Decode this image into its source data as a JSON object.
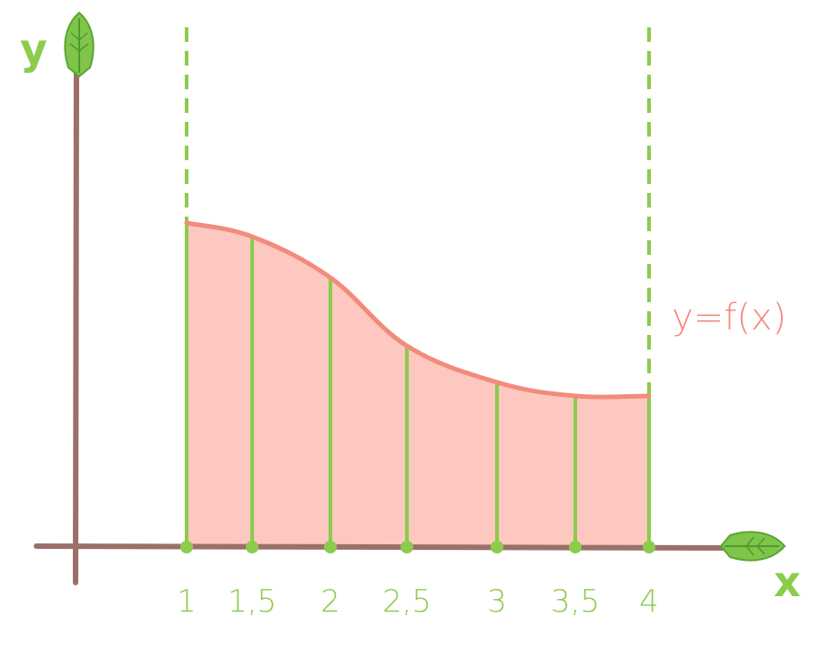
{
  "chart_data": {
    "type": "area",
    "x_axis_label": "x",
    "y_axis_label": "y",
    "curve_label": "y=f(x)",
    "x_ticks": [
      "1",
      "1,5",
      "2",
      "2,5",
      "3",
      "3,5",
      "4"
    ],
    "x": [
      1,
      1.5,
      2,
      2.5,
      3,
      3.5,
      4
    ],
    "y": [
      3.55,
      3.4,
      2.95,
      2.2,
      1.8,
      1.65,
      1.65
    ],
    "xlim": [
      1,
      4
    ],
    "grid": false
  },
  "colors": {
    "axis": "#9b6f6a",
    "curve": "#f38b7c",
    "fill": "#fdc8c0",
    "partition": "#8ccc4c",
    "label_green": "#8ccc4c",
    "curve_label": "#f38b7c",
    "leaf": "#7fc54a"
  },
  "icons": {
    "y_arrow": "leaf-arrowhead-icon",
    "x_arrow": "leaf-arrowhead-icon"
  }
}
